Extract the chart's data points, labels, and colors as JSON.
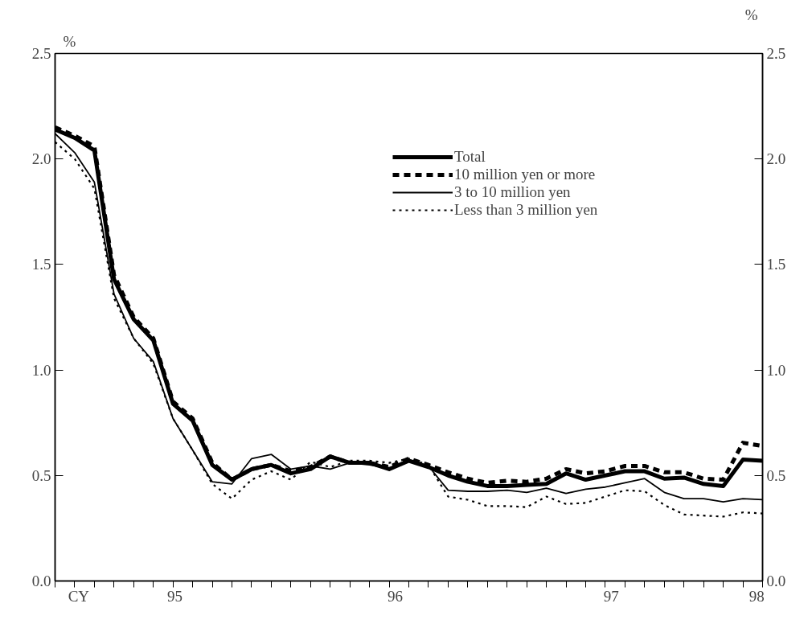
{
  "chart_data": {
    "type": "line",
    "ylabel": "%",
    "y2label": "%",
    "categories": [
      null,
      null,
      null,
      null,
      null,
      null,
      null,
      null,
      null,
      null,
      null,
      null,
      null,
      null,
      null,
      null,
      null,
      null,
      null,
      null,
      null,
      null,
      null,
      null,
      null,
      null,
      null,
      null,
      null,
      null,
      null,
      null,
      null,
      null,
      null,
      null,
      null
    ],
    "annotations": [
      "CY",
      "95",
      "96",
      "97",
      "98"
    ],
    "ylim": [
      0,
      2.5
    ],
    "yticks": [
      {
        "value": 0,
        "label": "0.0"
      },
      {
        "value": 0.5,
        "label": "0.5"
      },
      {
        "value": 1,
        "label": "1.0"
      },
      {
        "value": 1.5,
        "label": "1.5"
      },
      {
        "value": 2,
        "label": "2.0"
      },
      {
        "value": 2.5,
        "label": "2.5"
      }
    ],
    "y2lim": [
      0,
      2.5
    ],
    "y2ticks": [
      {
        "value": 0,
        "label": "0.0"
      },
      {
        "value": 0.5,
        "label": "0.5"
      },
      {
        "value": 1,
        "label": "1.0"
      },
      {
        "value": 1.5,
        "label": "1.5"
      },
      {
        "value": 2,
        "label": "2.0"
      },
      {
        "value": 2.5,
        "label": "2.5"
      }
    ],
    "grid": false,
    "legend": "top right",
    "marker": "none",
    "series": [
      {
        "name": "Total",
        "color": "#000000",
        "line_style": "solid",
        "values": [
          2.14,
          2.1,
          2.04,
          1.43,
          1.24,
          1.14,
          0.84,
          0.76,
          0.55,
          0.48,
          0.53,
          0.55,
          0.51,
          0.53,
          0.59,
          0.56,
          0.56,
          0.53,
          0.57,
          0.54,
          0.5,
          0.47,
          0.45,
          0.45,
          0.455,
          0.46,
          0.51,
          0.48,
          0.5,
          0.52,
          0.52,
          0.485,
          0.49,
          0.46,
          0.45,
          0.575,
          0.57
        ]
      },
      {
        "name": "10 million yen or more",
        "color": "#000000",
        "line_style": "dashed",
        "values": [
          2.15,
          2.11,
          2.06,
          1.45,
          1.25,
          1.15,
          0.85,
          0.77,
          0.56,
          0.48,
          0.53,
          0.55,
          0.52,
          0.54,
          0.59,
          0.56,
          0.56,
          0.54,
          0.58,
          0.55,
          0.515,
          0.485,
          0.465,
          0.475,
          0.47,
          0.485,
          0.53,
          0.51,
          0.52,
          0.545,
          0.545,
          0.515,
          0.515,
          0.485,
          0.48,
          0.655,
          0.64
        ]
      },
      {
        "name": "3 to 10 million yen",
        "color": "#000000",
        "line_style": "solid",
        "values": [
          2.12,
          2.03,
          1.89,
          1.36,
          1.15,
          1.04,
          0.77,
          0.62,
          0.47,
          0.46,
          0.58,
          0.6,
          0.53,
          0.545,
          0.53,
          0.56,
          0.55,
          0.535,
          0.57,
          0.545,
          0.43,
          0.425,
          0.425,
          0.43,
          0.42,
          0.44,
          0.415,
          0.435,
          0.445,
          0.465,
          0.485,
          0.42,
          0.39,
          0.39,
          0.375,
          0.39,
          0.385
        ]
      },
      {
        "name": "Less than 3 million yen",
        "color": "#000000",
        "line_style": "dotted",
        "values": [
          2.08,
          2.0,
          1.86,
          1.34,
          1.15,
          1.03,
          0.77,
          0.62,
          0.46,
          0.39,
          0.48,
          0.52,
          0.48,
          0.565,
          0.54,
          0.57,
          0.57,
          0.56,
          0.58,
          0.55,
          0.4,
          0.385,
          0.355,
          0.355,
          0.35,
          0.4,
          0.365,
          0.37,
          0.4,
          0.43,
          0.425,
          0.36,
          0.315,
          0.31,
          0.305,
          0.325,
          0.32
        ]
      }
    ]
  }
}
